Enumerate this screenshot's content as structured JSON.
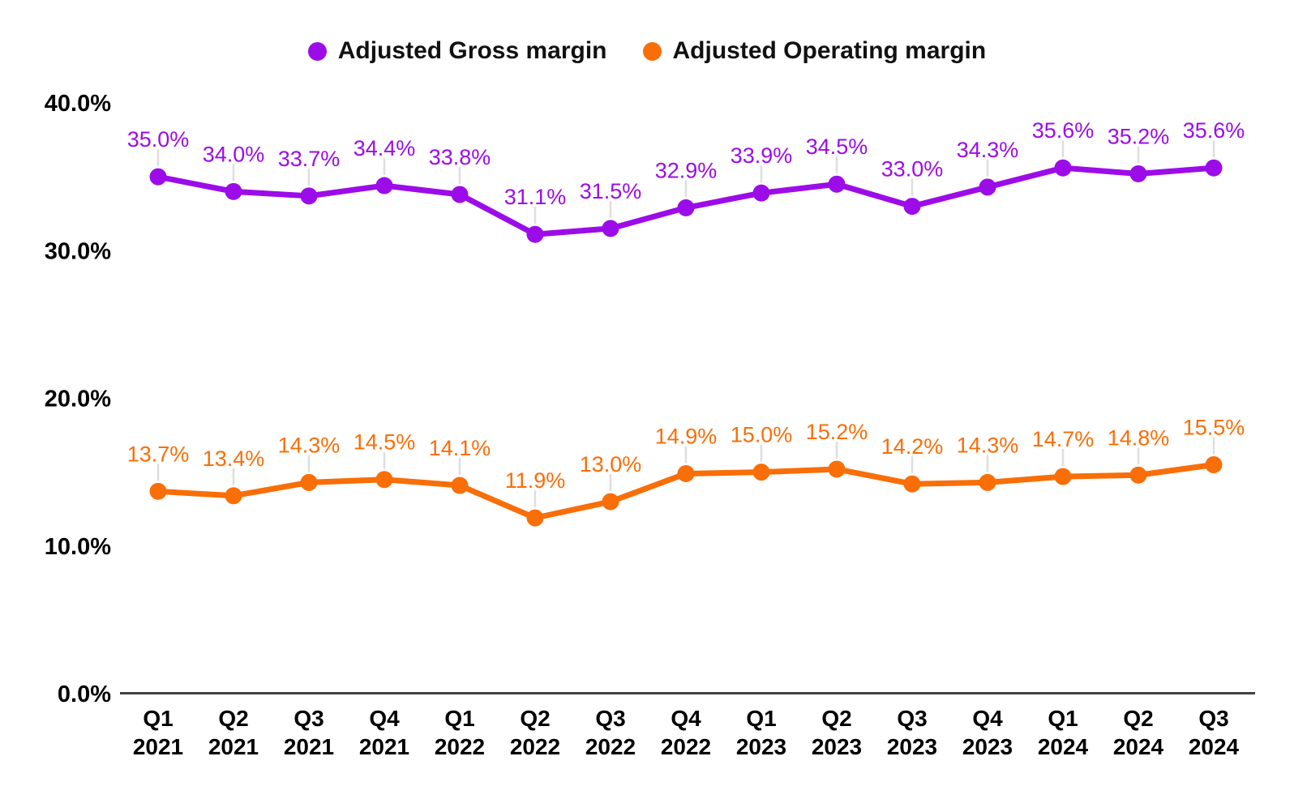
{
  "legend": {
    "items": [
      {
        "label": "Adjusted Gross margin"
      },
      {
        "label": "Adjusted Operating margin"
      }
    ]
  },
  "chart_data": {
    "type": "line",
    "title": "",
    "categories": [
      "Q1 2021",
      "Q2 2021",
      "Q3 2021",
      "Q4 2021",
      "Q1 2022",
      "Q2 2022",
      "Q3 2022",
      "Q4 2022",
      "Q1 2023",
      "Q2 2023",
      "Q3 2023",
      "Q4 2023",
      "Q1 2024",
      "Q2 2024",
      "Q3 2024"
    ],
    "series": [
      {
        "name": "Adjusted Gross margin",
        "color": "#9C0CE8",
        "values": [
          35.0,
          34.0,
          33.7,
          34.4,
          33.8,
          31.1,
          31.5,
          32.9,
          33.9,
          34.5,
          33.0,
          34.3,
          35.6,
          35.2,
          35.6
        ],
        "labels": [
          "35.0%",
          "34.0%",
          "33.7%",
          "34.4%",
          "33.8%",
          "31.1%",
          "31.5%",
          "32.9%",
          "33.9%",
          "34.5%",
          "33.0%",
          "34.3%",
          "35.6%",
          "35.2%",
          "35.6%"
        ]
      },
      {
        "name": "Adjusted Operating margin",
        "color": "#F96E07",
        "values": [
          13.7,
          13.4,
          14.3,
          14.5,
          14.1,
          11.9,
          13.0,
          14.9,
          15.0,
          15.2,
          14.2,
          14.3,
          14.7,
          14.8,
          15.5
        ],
        "labels": [
          "13.7%",
          "13.4%",
          "14.3%",
          "14.5%",
          "14.1%",
          "11.9%",
          "13.0%",
          "14.9%",
          "15.0%",
          "15.2%",
          "14.2%",
          "14.3%",
          "14.7%",
          "14.8%",
          "15.5%"
        ]
      }
    ],
    "xlabel": "",
    "ylabel": "",
    "ylim": [
      0,
      40
    ],
    "yticks": [
      {
        "value": 0,
        "label": "0.0%"
      },
      {
        "value": 10,
        "label": "10.0%"
      },
      {
        "value": 20,
        "label": "20.0%"
      },
      {
        "value": 30,
        "label": "30.0%"
      },
      {
        "value": 40,
        "label": "40.0%"
      }
    ],
    "grid": false,
    "legend_position": "top",
    "colors": {
      "axis_line": "#424242",
      "tick_text": "#000000",
      "label_leader_line": "#DEDEDE",
      "background": "#FFFFFF"
    }
  }
}
